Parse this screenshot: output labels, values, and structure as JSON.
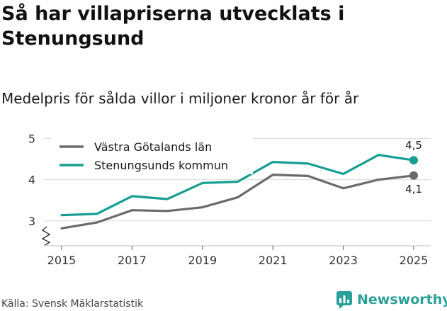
{
  "title": "Så har villapriserna utvecklats i Stenungsund",
  "subtitle": "Medelpris för sålda villor i miljoner kronor år för år",
  "source": "Källa: Svensk Mäklarstatistik",
  "brand": "Newsworthy",
  "colors": {
    "gray_series": "#6b6b6b",
    "teal_series": "#159e91",
    "grid": "#d9d9d9",
    "axis_text": "#333333",
    "brand": "#2aa198"
  },
  "chart_data": {
    "type": "line",
    "title": "Så har villapriserna utvecklats i Stenungsund",
    "subtitle": "Medelpris för sålda villor i miljoner kronor år för år",
    "xlabel": "",
    "ylabel": "",
    "x": [
      2015,
      2016,
      2017,
      2018,
      2019,
      2020,
      2021,
      2022,
      2023,
      2024,
      2025
    ],
    "x_tick_labels": [
      "2015",
      "2017",
      "2019",
      "2021",
      "2023",
      "2025"
    ],
    "y_tick_labels": [
      "3",
      "4",
      "5"
    ],
    "ylim": [
      2.4,
      5.1
    ],
    "grid": true,
    "legend_position": "top-left",
    "series": [
      {
        "name": "Västra Götalands län",
        "color": "#6b6b6b",
        "values": [
          2.82,
          2.96,
          3.26,
          3.24,
          3.33,
          3.57,
          4.12,
          4.09,
          3.79,
          4.0,
          4.1
        ],
        "end_label": "4,1"
      },
      {
        "name": "Stenungsunds kommun",
        "color": "#159e91",
        "values": [
          3.14,
          3.17,
          3.6,
          3.53,
          3.92,
          3.95,
          4.43,
          4.39,
          4.14,
          4.6,
          4.47
        ],
        "end_label": "4,5"
      }
    ]
  }
}
